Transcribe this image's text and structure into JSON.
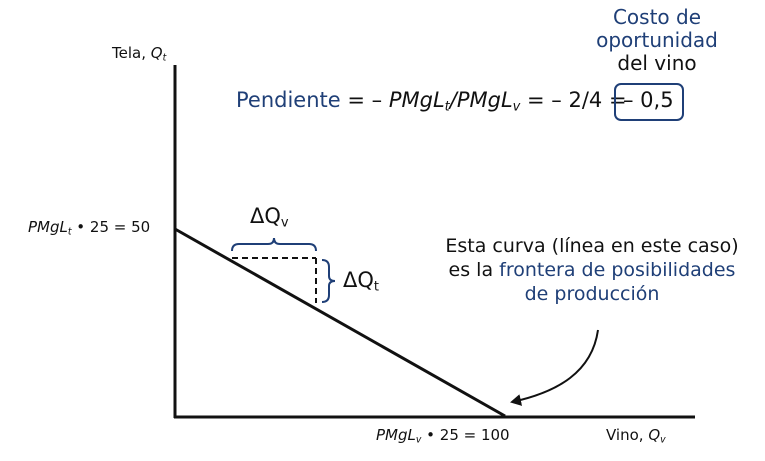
{
  "axes": {
    "y_label": "Tela, ",
    "y_var": "Q",
    "y_sub": "t",
    "x_label": "Vino, ",
    "x_var": "Q",
    "x_sub": "v"
  },
  "intercepts": {
    "y": {
      "pre": "PMgL",
      "sub": "t",
      "post": " • 25 = 50"
    },
    "x": {
      "pre": "PMgL",
      "sub": "v",
      "post": " • 25 = 100"
    }
  },
  "opportunity_cost": {
    "line1": "Costo de",
    "line2": "oportunidad",
    "line3": "del vino"
  },
  "slope": {
    "word": "Pendiente",
    "eq1": " = – ",
    "num": "PMgL",
    "num_sub": "t",
    "slash": "/",
    "den": "PMgL",
    "den_sub": "v",
    "eq2": " = – 2/4 = ",
    "value": "– 0,5"
  },
  "deltas": {
    "qv": {
      "sym": "ΔQ",
      "sub": "v"
    },
    "qt": {
      "sym": "ΔQ",
      "sub": "t"
    }
  },
  "note": {
    "part1": "Esta curva (línea en este caso) es la ",
    "highlight": "frontera de posibilidades de producción"
  },
  "colors": {
    "accent_blue": "#1f3f77",
    "line": "#111111"
  }
}
